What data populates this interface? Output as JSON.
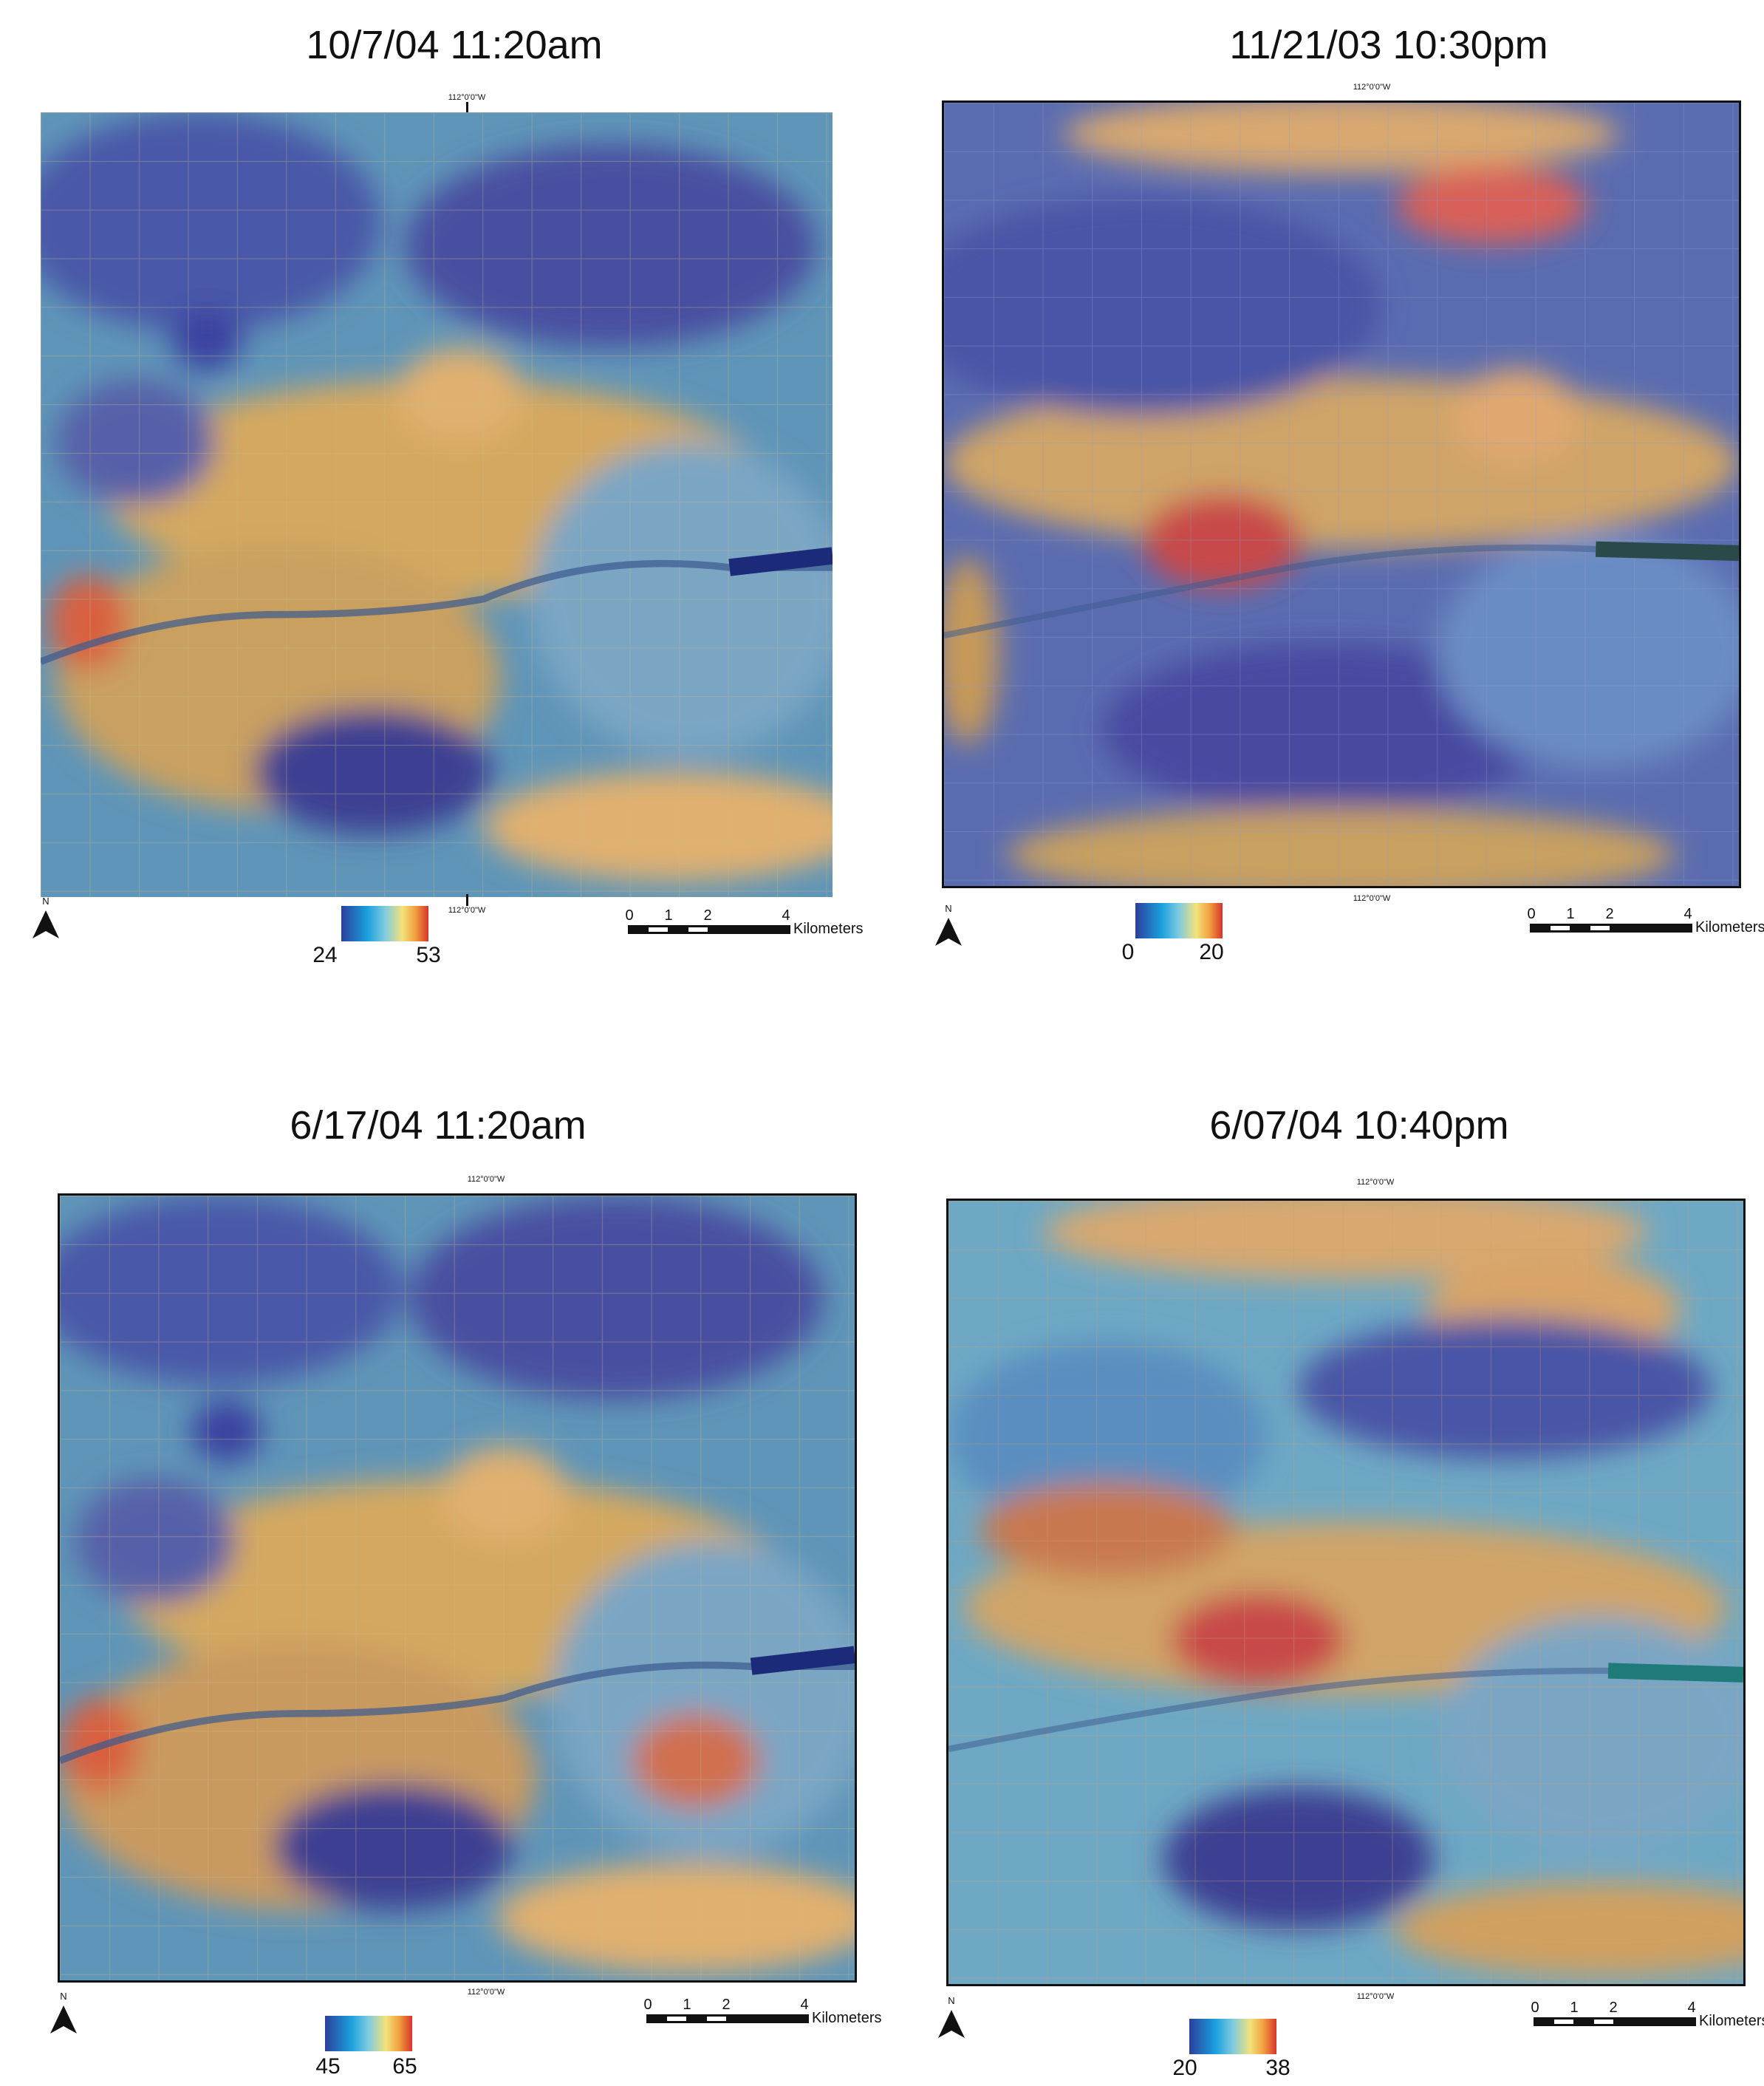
{
  "panels": [
    {
      "id": "p1",
      "title": "10/7/04 11:20am",
      "meridian_top": "112°0'0\"W",
      "meridian_bottom": "112°0'0\"W",
      "north": "N",
      "colorbar": {
        "min": "24",
        "max": "53"
      },
      "scale": {
        "ticks": [
          "0",
          "1",
          "2",
          "4"
        ],
        "unit": "Kilometers"
      }
    },
    {
      "id": "p2",
      "title": "11/21/03 10:30pm",
      "meridian_top": "112°0'0\"W",
      "meridian_bottom": "112°0'0\"W",
      "north": "N",
      "colorbar": {
        "min": "0",
        "max": "20"
      },
      "scale": {
        "ticks": [
          "0",
          "1",
          "2",
          "4"
        ],
        "unit": "Kilometers"
      }
    },
    {
      "id": "p3",
      "title": "6/17/04 11:20am",
      "meridian_top": "112°0'0\"W",
      "meridian_bottom": "112°0'0\"W",
      "north": "N",
      "colorbar": {
        "min": "45",
        "max": "65"
      },
      "scale": {
        "ticks": [
          "0",
          "1",
          "2",
          "4"
        ],
        "unit": "Kilometers"
      }
    },
    {
      "id": "p4",
      "title": "6/07/04 10:40pm",
      "meridian_top": "112°0'0\"W",
      "meridian_bottom": "112°0'0\"W",
      "north": "N",
      "colorbar": {
        "min": "20",
        "max": "38"
      },
      "scale": {
        "ticks": [
          "0",
          "1",
          "2",
          "4"
        ],
        "unit": "Kilometers"
      }
    }
  ],
  "colors": {
    "ramp": [
      "#2c3f9c",
      "#1aa0dd",
      "#7fcbe0",
      "#f3e27a",
      "#f0a040",
      "#d9342b"
    ],
    "cool": "#4a5aa8",
    "cyan": "#5ea8c0",
    "warm": "#d4a860",
    "hot": "#c8504a",
    "river": "#3b5a8e"
  }
}
